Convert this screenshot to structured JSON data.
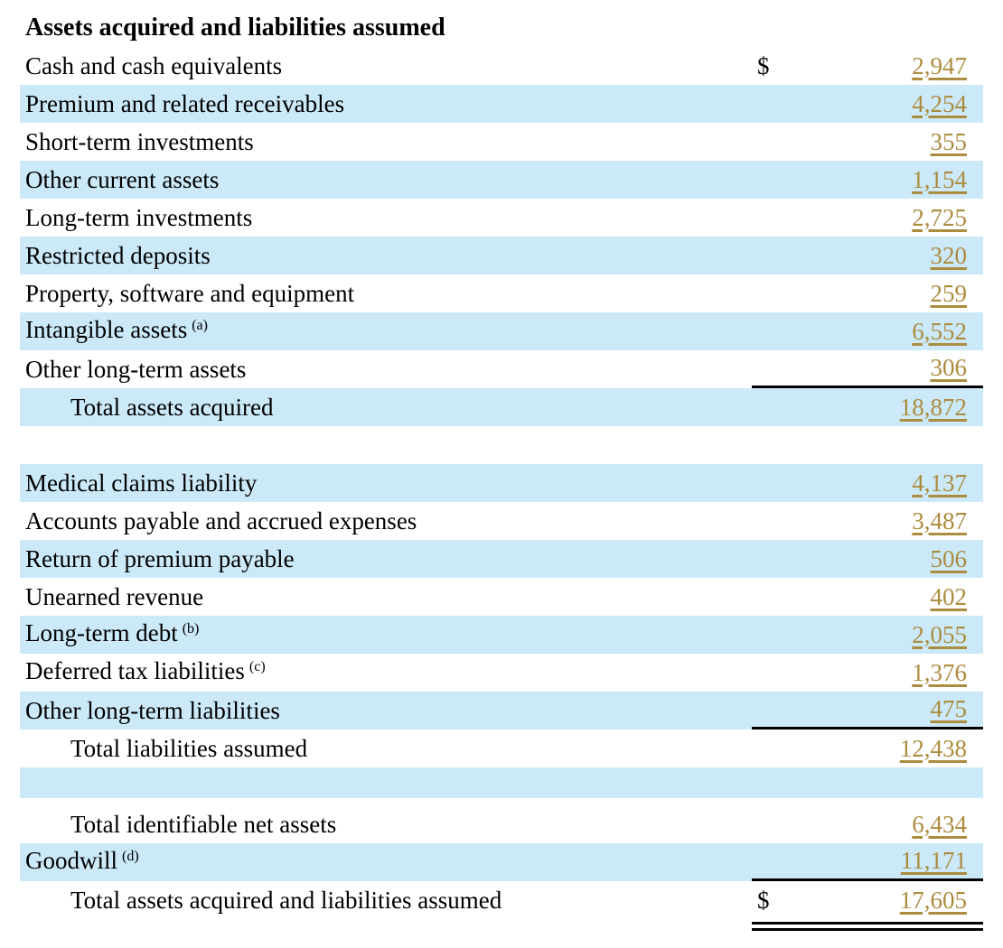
{
  "title": "Assets acquired and liabilities assumed",
  "colors": {
    "row_highlight_blue": "#CBE9F8",
    "value_gold": "#AC8C3E",
    "rule_black": "#000000"
  },
  "rows": [
    {
      "label": "Cash and cash equivalents",
      "dollar": "$",
      "value": "2,947",
      "shade": "white"
    },
    {
      "label": "Premium and related receivables",
      "value": "4,254",
      "shade": "blue"
    },
    {
      "label": "Short-term investments",
      "value": "355",
      "shade": "white"
    },
    {
      "label": "Other current assets",
      "value": "1,154",
      "shade": "blue"
    },
    {
      "label": "Long-term investments",
      "value": "2,725",
      "shade": "white"
    },
    {
      "label": "Restricted deposits",
      "value": "320",
      "shade": "blue"
    },
    {
      "label": "Property, software and equipment",
      "value": "259",
      "shade": "white"
    },
    {
      "label": "Intangible assets",
      "footnote": "(a)",
      "value": "6,552",
      "shade": "blue"
    },
    {
      "label": "Other long-term assets",
      "value": "306",
      "shade": "white",
      "rule_below": true
    },
    {
      "label": "Total assets acquired",
      "value": "18,872",
      "shade": "blue",
      "indent": true
    },
    {
      "spacer": "white"
    },
    {
      "label": "Medical claims liability",
      "value": "4,137",
      "shade": "blue"
    },
    {
      "label": "Accounts payable and accrued expenses",
      "value": "3,487",
      "shade": "white"
    },
    {
      "label": "Return of premium payable",
      "value": "506",
      "shade": "blue"
    },
    {
      "label": "Unearned revenue",
      "value": "402",
      "shade": "white"
    },
    {
      "label": "Long-term debt",
      "footnote": "(b)",
      "value": "2,055",
      "shade": "blue"
    },
    {
      "label": "Deferred tax liabilities",
      "footnote": "(c)",
      "value": "1,376",
      "shade": "white"
    },
    {
      "label": "Other long-term liabilities",
      "value": "475",
      "shade": "blue",
      "rule_below": true
    },
    {
      "label": "Total liabilities assumed",
      "value": "12,438",
      "shade": "white",
      "indent": true
    },
    {
      "spacer": "blue"
    },
    {
      "label": "Total identifiable net assets",
      "value": "6,434",
      "shade": "white",
      "indent": true
    },
    {
      "label": "Goodwill",
      "footnote": "(d)",
      "value": "11,171",
      "shade": "blue",
      "rule_below": true
    },
    {
      "label": "Total assets acquired and liabilities assumed",
      "dollar": "$",
      "value": "17,605",
      "shade": "white",
      "indent": true,
      "double_rule_below": true
    }
  ]
}
